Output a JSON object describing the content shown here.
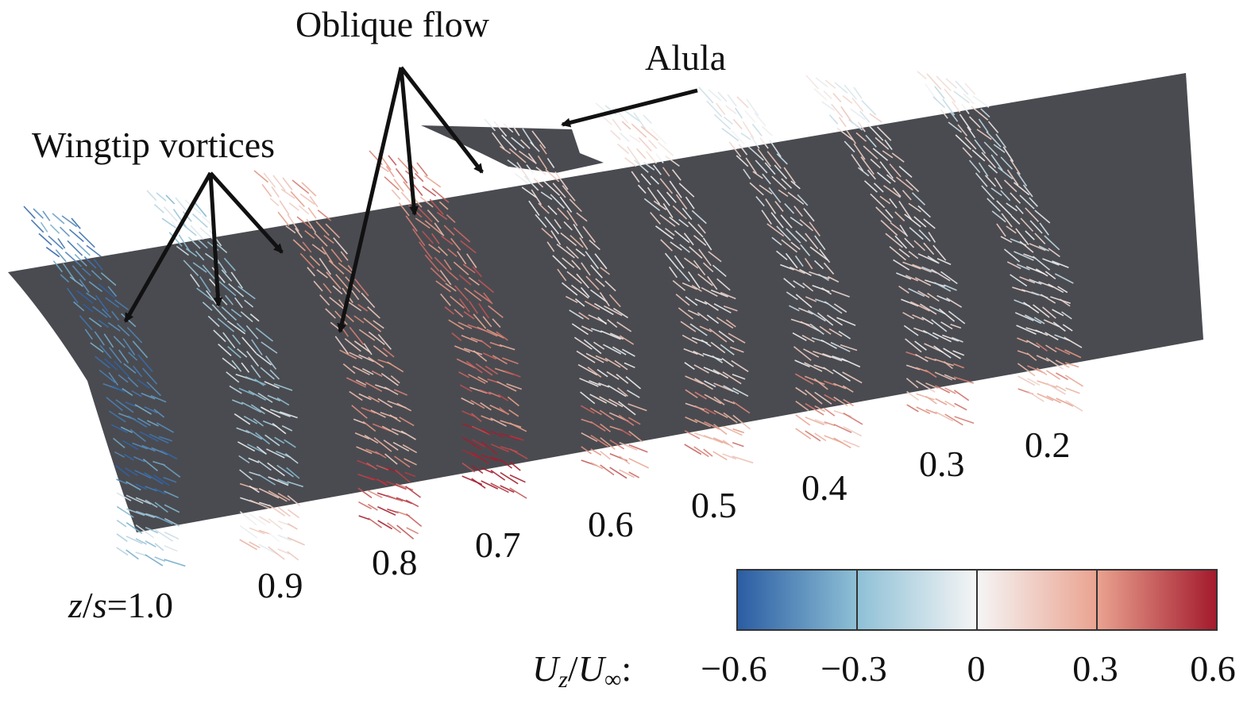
{
  "annotations": {
    "oblique_flow": "Oblique flow",
    "alula": "Alula",
    "wingtip_vortices": "Wingtip vortices"
  },
  "stations": {
    "first_var_z": "z",
    "first_slash": "/",
    "first_var_s": "s",
    "first_eq_value": "=1.0",
    "values": [
      "0.9",
      "0.8",
      "0.7",
      "0.6",
      "0.5",
      "0.4",
      "0.3",
      "0.2"
    ]
  },
  "colorbar": {
    "label_var": "U",
    "label_sub": "z",
    "label_slash": "/",
    "label_inf_var": "U",
    "label_inf_sub": "∞",
    "label_colon": ":",
    "ticks": [
      "−0.6",
      "−0.3",
      "0",
      "0.3",
      "0.6"
    ],
    "range": [
      -0.6,
      0.6
    ],
    "colors": [
      "#2c5fa6",
      "#7fb6cf",
      "#f4f4f4",
      "#e8a48f",
      "#a51d2e"
    ]
  },
  "colors": {
    "wing_surface": "#4a4b50",
    "arrow_negative": "#2c5fa6",
    "arrow_neutral": "#f2f2f2",
    "arrow_positive": "#a51d2e"
  }
}
